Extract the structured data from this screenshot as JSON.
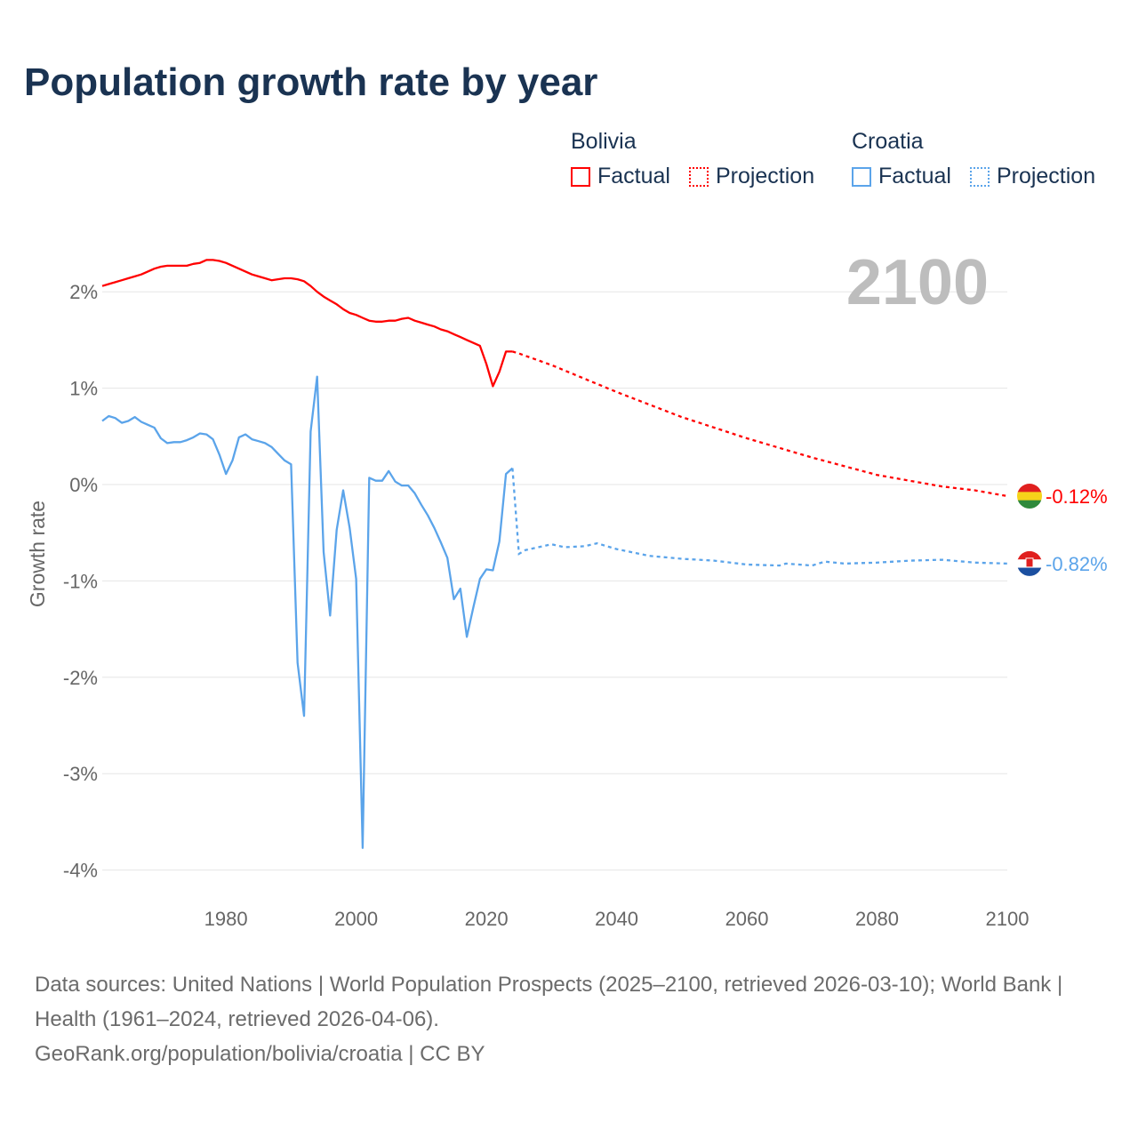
{
  "title": "Population growth rate by year",
  "legend": [
    {
      "country": "Bolivia",
      "color": "#ff0000",
      "factual_label": "Factual",
      "projection_label": "Projection"
    },
    {
      "country": "Croatia",
      "color": "#5ba4ea",
      "factual_label": "Factual",
      "projection_label": "Projection"
    }
  ],
  "footer": {
    "sources": "Data sources: United Nations | World Population Prospects (2025–2100, retrieved 2026-03-10); World Bank | Health (1961–2024, retrieved 2026-04-06).",
    "credit": "GeoRank.org/population/bolivia/croatia | CC BY"
  },
  "chart_data": {
    "type": "line",
    "title": "Population growth rate by year",
    "xlabel": "",
    "ylabel": "Growth rate",
    "xlim": [
      1961,
      2100
    ],
    "ylim": [
      -4.3,
      2.5
    ],
    "x_ticks": [
      1980,
      2000,
      2020,
      2040,
      2060,
      2080,
      2100
    ],
    "x_tick_labels": [
      "1980",
      "2000",
      "2020",
      "2040",
      "2060",
      "2080",
      "2100"
    ],
    "y_ticks": [
      2,
      1,
      0,
      -1,
      -2,
      -3,
      -4
    ],
    "y_tick_labels": [
      "2%",
      "1%",
      "0%",
      "-1%",
      "-2%",
      "-3%",
      "-4%"
    ],
    "grid": true,
    "year_label": "2100",
    "series": [
      {
        "name": "Bolivia",
        "color": "#ff0000",
        "end_label": "-0.12%",
        "flag": "bolivia-flag",
        "factual": {
          "x": [
            1961,
            1962,
            1963,
            1964,
            1965,
            1966,
            1967,
            1968,
            1969,
            1970,
            1971,
            1972,
            1973,
            1974,
            1975,
            1976,
            1977,
            1978,
            1979,
            1980,
            1981,
            1982,
            1983,
            1984,
            1985,
            1986,
            1987,
            1988,
            1989,
            1990,
            1991,
            1992,
            1993,
            1994,
            1995,
            1996,
            1997,
            1998,
            1999,
            2000,
            2001,
            2002,
            2003,
            2004,
            2005,
            2006,
            2007,
            2008,
            2009,
            2010,
            2011,
            2012,
            2013,
            2014,
            2015,
            2016,
            2017,
            2018,
            2019,
            2020,
            2021,
            2022,
            2023,
            2024
          ],
          "y": [
            2.06,
            2.08,
            2.1,
            2.12,
            2.14,
            2.16,
            2.18,
            2.21,
            2.24,
            2.26,
            2.27,
            2.27,
            2.27,
            2.27,
            2.29,
            2.3,
            2.33,
            2.33,
            2.32,
            2.3,
            2.27,
            2.24,
            2.21,
            2.18,
            2.16,
            2.14,
            2.12,
            2.13,
            2.14,
            2.14,
            2.13,
            2.11,
            2.06,
            2.0,
            1.95,
            1.91,
            1.87,
            1.82,
            1.78,
            1.76,
            1.73,
            1.7,
            1.69,
            1.69,
            1.7,
            1.7,
            1.72,
            1.73,
            1.7,
            1.68,
            1.66,
            1.64,
            1.61,
            1.59,
            1.56,
            1.53,
            1.5,
            1.47,
            1.44,
            1.25,
            1.02,
            1.17,
            1.38,
            1.38
          ]
        },
        "projection": {
          "x": [
            2024,
            2025,
            2030,
            2035,
            2040,
            2045,
            2050,
            2055,
            2060,
            2065,
            2070,
            2075,
            2080,
            2085,
            2090,
            2095,
            2100
          ],
          "y": [
            1.38,
            1.36,
            1.24,
            1.1,
            0.96,
            0.83,
            0.7,
            0.59,
            0.48,
            0.38,
            0.28,
            0.19,
            0.1,
            0.04,
            -0.02,
            -0.06,
            -0.12
          ]
        }
      },
      {
        "name": "Croatia",
        "color": "#5ba4ea",
        "end_label": "-0.82%",
        "flag": "croatia-flag",
        "factual": {
          "x": [
            1961,
            1962,
            1963,
            1964,
            1965,
            1966,
            1967,
            1968,
            1969,
            1970,
            1971,
            1972,
            1973,
            1974,
            1975,
            1976,
            1977,
            1978,
            1979,
            1980,
            1981,
            1982,
            1983,
            1984,
            1985,
            1986,
            1987,
            1988,
            1989,
            1990,
            1991,
            1992,
            1993,
            1994,
            1995,
            1996,
            1997,
            1998,
            1999,
            2000,
            2001,
            2002,
            2003,
            2004,
            2005,
            2006,
            2007,
            2008,
            2009,
            2010,
            2011,
            2012,
            2013,
            2014,
            2015,
            2016,
            2017,
            2018,
            2019,
            2020,
            2021,
            2022,
            2023,
            2024
          ],
          "y": [
            0.66,
            0.71,
            0.69,
            0.64,
            0.66,
            0.7,
            0.65,
            0.62,
            0.59,
            0.48,
            0.43,
            0.44,
            0.44,
            0.46,
            0.49,
            0.53,
            0.52,
            0.47,
            0.31,
            0.11,
            0.25,
            0.49,
            0.52,
            0.47,
            0.45,
            0.43,
            0.39,
            0.32,
            0.25,
            0.21,
            -1.85,
            -2.4,
            0.55,
            1.12,
            -0.7,
            -1.36,
            -0.47,
            -0.06,
            -0.45,
            -0.98,
            -3.77,
            0.07,
            0.04,
            0.04,
            0.14,
            0.03,
            -0.01,
            -0.01,
            -0.09,
            -0.21,
            -0.32,
            -0.45,
            -0.6,
            -0.76,
            -1.19,
            -1.08,
            -1.58,
            -1.27,
            -0.98,
            -0.88,
            -0.89,
            -0.59,
            0.11,
            0.17
          ]
        },
        "projection": {
          "x": [
            2024,
            2025,
            2026,
            2030,
            2032,
            2035,
            2037,
            2040,
            2045,
            2050,
            2055,
            2060,
            2065,
            2066,
            2070,
            2072,
            2075,
            2080,
            2085,
            2090,
            2095,
            2100
          ],
          "y": [
            0.17,
            -0.72,
            -0.68,
            -0.62,
            -0.65,
            -0.64,
            -0.61,
            -0.67,
            -0.74,
            -0.77,
            -0.79,
            -0.83,
            -0.84,
            -0.82,
            -0.84,
            -0.8,
            -0.82,
            -0.81,
            -0.79,
            -0.78,
            -0.81,
            -0.82
          ]
        }
      }
    ]
  }
}
